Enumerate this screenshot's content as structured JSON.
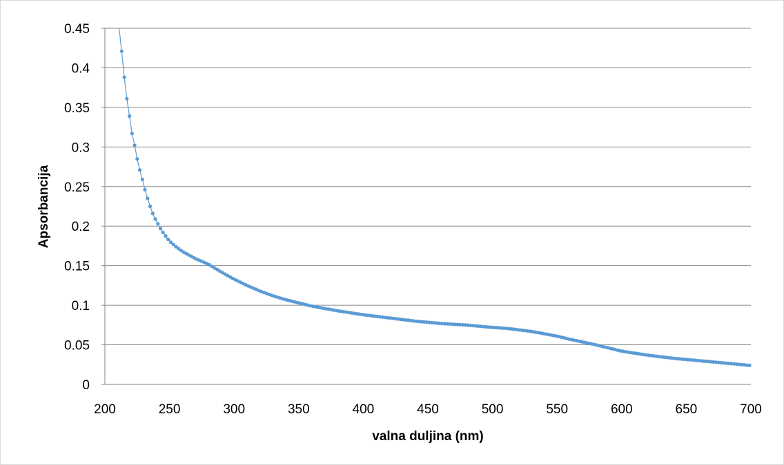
{
  "chart_data": {
    "type": "scatter",
    "title": "",
    "xlabel": "valna duljina (nm)",
    "ylabel": "Apsorbancija",
    "xlim": [
      200,
      700
    ],
    "ylim": [
      0,
      0.45
    ],
    "x_ticks": [
      200,
      250,
      300,
      350,
      400,
      450,
      500,
      550,
      600,
      650,
      700
    ],
    "x_tick_labels": [
      "200",
      "250",
      "300",
      "350",
      "400",
      "450",
      "500",
      "550",
      "600",
      "650",
      "700"
    ],
    "y_ticks": [
      0,
      0.05,
      0.1,
      0.15,
      0.2,
      0.25,
      0.3,
      0.35,
      0.4,
      0.45
    ],
    "y_tick_labels": [
      "0",
      "0.05",
      "0.1",
      "0.15",
      "0.2",
      "0.25",
      "0.3",
      "0.35",
      "0.4",
      "0.45"
    ],
    "grid": "horizontal",
    "legend": "none",
    "color": "#5b9bd5",
    "series": [
      {
        "x_start": 213,
        "x_step": 2,
        "x_end": 699,
        "curve_anchors": {
          "x": [
            211,
            213,
            215,
            217,
            219,
            221,
            223,
            225,
            227,
            229,
            231,
            233,
            235,
            237,
            239,
            241,
            243,
            245,
            250,
            255,
            260,
            270,
            280,
            290,
            300,
            310,
            320,
            330,
            340,
            350,
            360,
            370,
            380,
            400,
            420,
            440,
            460,
            480,
            500,
            510,
            520,
            530,
            540,
            550,
            560,
            580,
            600,
            620,
            640,
            660,
            680,
            699
          ],
          "y": [
            0.45,
            0.421,
            0.388,
            0.361,
            0.339,
            0.317,
            0.302,
            0.285,
            0.271,
            0.259,
            0.246,
            0.235,
            0.225,
            0.216,
            0.209,
            0.203,
            0.197,
            0.192,
            0.181,
            0.174,
            0.168,
            0.159,
            0.152,
            0.142,
            0.133,
            0.125,
            0.118,
            0.112,
            0.107,
            0.103,
            0.099,
            0.096,
            0.093,
            0.088,
            0.084,
            0.08,
            0.077,
            0.075,
            0.072,
            0.071,
            0.069,
            0.067,
            0.064,
            0.061,
            0.057,
            0.05,
            0.042,
            0.037,
            0.033,
            0.03,
            0.027,
            0.024
          ]
        }
      }
    ]
  }
}
